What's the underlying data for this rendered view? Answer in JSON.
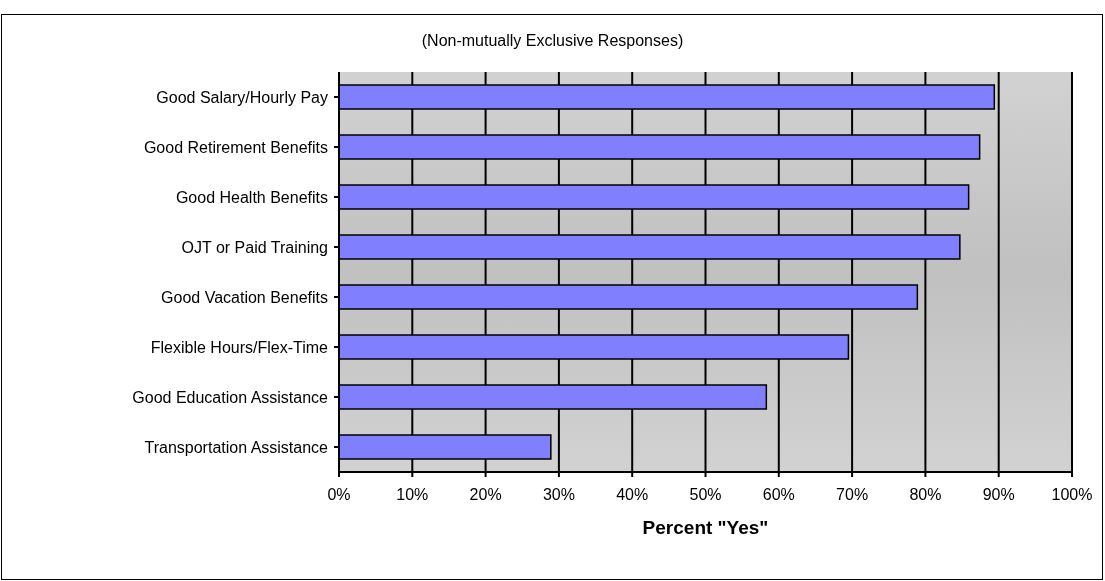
{
  "chart_data": {
    "type": "bar",
    "orientation": "horizontal",
    "subtitle": "(Non-mutually Exclusive Responses)",
    "xlabel": "Percent \"Yes\"",
    "categories": [
      "Good Salary/Hourly Pay",
      "Good Retirement Benefits",
      "Good Health Benefits",
      "OJT or Paid Training",
      "Good Vacation Benefits",
      "Flexible Hours/Flex-Time",
      "Good Education Assistance",
      "Transportation Assistance"
    ],
    "values": [
      89.4,
      87.4,
      85.9,
      84.7,
      78.9,
      69.5,
      58.3,
      28.9
    ],
    "color": "#8080ff",
    "xlim": [
      0,
      100
    ],
    "xticks": [
      {
        "value": 0,
        "label": "0%"
      },
      {
        "value": 10,
        "label": "10%"
      },
      {
        "value": 20,
        "label": "20%"
      },
      {
        "value": 30,
        "label": "30%"
      },
      {
        "value": 40,
        "label": "40%"
      },
      {
        "value": 50,
        "label": "50%"
      },
      {
        "value": 60,
        "label": "60%"
      },
      {
        "value": 70,
        "label": "70%"
      },
      {
        "value": 80,
        "label": "80%"
      },
      {
        "value": 90,
        "label": "90%"
      },
      {
        "value": 100,
        "label": "100%"
      }
    ],
    "grid": "x"
  }
}
